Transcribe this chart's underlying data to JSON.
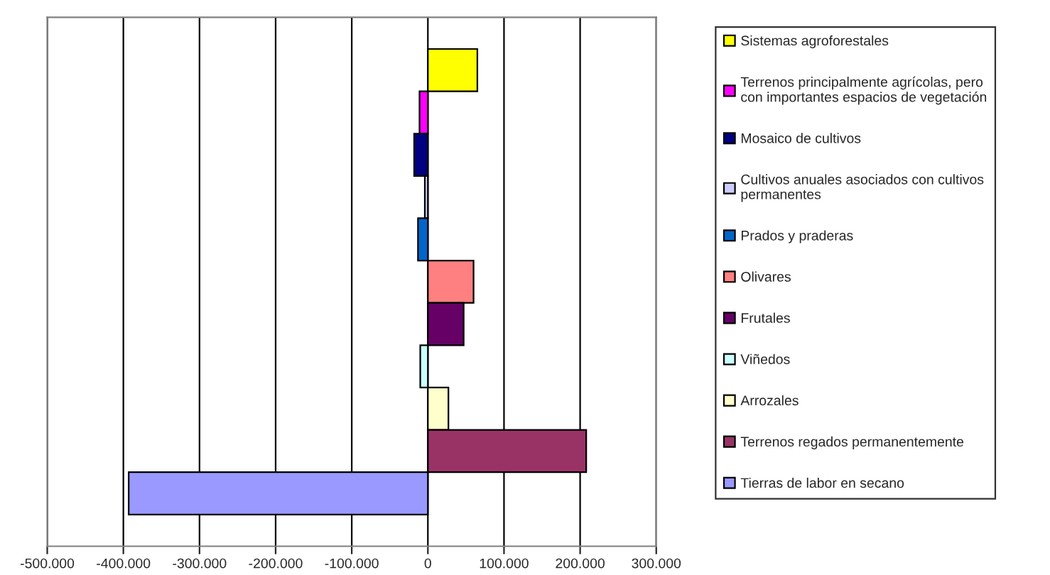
{
  "chart_data": {
    "type": "bar",
    "orientation": "horizontal",
    "categories": [
      null,
      null,
      null,
      null,
      null,
      null,
      null,
      null,
      null,
      null,
      null
    ],
    "series": [
      {
        "name": "Sistemas agroforestales",
        "color": "#ffff00",
        "values": [
          65000,
          null,
          null,
          null,
          null,
          null,
          null,
          null,
          null,
          null,
          null
        ]
      },
      {
        "name": "Terrenos principalmente agrícolas, pero\ncon importantes espacios de vegetación",
        "color": "#ff00ff",
        "values": [
          null,
          -11000,
          null,
          null,
          null,
          null,
          null,
          null,
          null,
          null,
          null
        ]
      },
      {
        "name": "Mosaico de cultivos",
        "color": "#000080",
        "values": [
          null,
          null,
          -18000,
          null,
          null,
          null,
          null,
          null,
          null,
          null,
          null
        ]
      },
      {
        "name": "Cultivos anuales asociados con cultivos\npermanentes",
        "color": "#ccccff",
        "values": [
          null,
          null,
          null,
          -4000,
          null,
          null,
          null,
          null,
          null,
          null,
          null
        ]
      },
      {
        "name": "Prados y praderas",
        "color": "#0066cc",
        "values": [
          null,
          null,
          null,
          null,
          -13000,
          null,
          null,
          null,
          null,
          null,
          null
        ]
      },
      {
        "name": "Olivares",
        "color": "#ff8080",
        "values": [
          null,
          null,
          null,
          null,
          null,
          60000,
          null,
          null,
          null,
          null,
          null
        ]
      },
      {
        "name": "Frutales",
        "color": "#660066",
        "values": [
          null,
          null,
          null,
          null,
          null,
          null,
          47000,
          null,
          null,
          null,
          null
        ]
      },
      {
        "name": "Viñedos",
        "color": "#ccffff",
        "values": [
          null,
          null,
          null,
          null,
          null,
          null,
          null,
          -10000,
          null,
          null,
          null
        ]
      },
      {
        "name": "Arrozales",
        "color": "#ffffcc",
        "values": [
          null,
          null,
          null,
          null,
          null,
          null,
          null,
          null,
          27000,
          null,
          null
        ]
      },
      {
        "name": "Terrenos regados permanentemente",
        "color": "#993366",
        "values": [
          null,
          null,
          null,
          null,
          null,
          null,
          null,
          null,
          null,
          208000,
          null
        ]
      },
      {
        "name": "Tierras de labor en secano",
        "color": "#9999ff",
        "values": [
          null,
          null,
          null,
          null,
          null,
          null,
          null,
          null,
          null,
          null,
          -393000
        ]
      }
    ],
    "xlim": [
      -500000,
      300000
    ],
    "xticks": [
      {
        "value": -500000,
        "label": "-500.000"
      },
      {
        "value": -400000,
        "label": "-400.000"
      },
      {
        "value": -300000,
        "label": "-300.000"
      },
      {
        "value": -200000,
        "label": "-200.000"
      },
      {
        "value": -100000,
        "label": "-100.000"
      },
      0,
      {
        "value": 100000,
        "label": "100.000"
      },
      {
        "value": 200000,
        "label": "200.000"
      },
      {
        "value": 300000,
        "label": "300.000"
      }
    ],
    "grid": "x",
    "legend": "right",
    "stacked": true
  }
}
